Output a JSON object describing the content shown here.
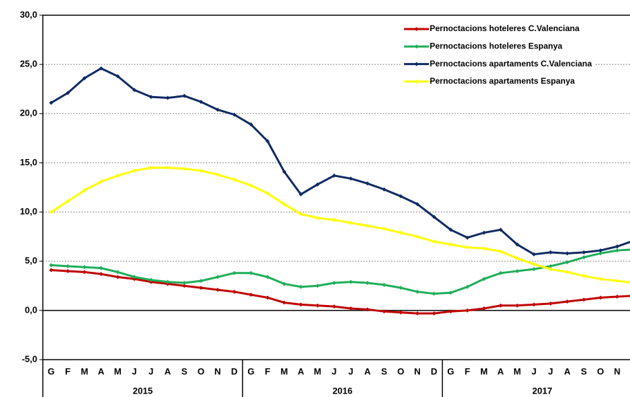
{
  "chart_data": {
    "type": "line",
    "categories": [
      "G",
      "F",
      "M",
      "A",
      "M",
      "J",
      "J",
      "A",
      "S",
      "O",
      "N",
      "D",
      "G",
      "F",
      "M",
      "A",
      "M",
      "J",
      "J",
      "A",
      "S",
      "O",
      "N",
      "D",
      "G",
      "F",
      "M",
      "A",
      "M",
      "J",
      "J",
      "A",
      "S",
      "O",
      "N",
      "D"
    ],
    "year_groups": [
      "2015",
      "2016",
      "2017"
    ],
    "series": [
      {
        "name": "Pernoctacions hoteleres C.Valenciana",
        "color": "#c00000",
        "values": [
          4.1,
          4.0,
          3.9,
          3.7,
          3.4,
          3.2,
          2.9,
          2.7,
          2.5,
          2.3,
          2.1,
          1.9,
          1.6,
          1.3,
          0.8,
          0.6,
          0.5,
          0.4,
          0.2,
          0.1,
          -0.1,
          -0.2,
          -0.3,
          -0.3,
          -0.1,
          0.0,
          0.2,
          0.5,
          0.5,
          0.6,
          0.7,
          0.9,
          1.1,
          1.3,
          1.4,
          1.5
        ]
      },
      {
        "name": "Pernoctacions hoteleres Espanya",
        "color": "#1fae5a",
        "values": [
          4.6,
          4.5,
          4.4,
          4.3,
          3.9,
          3.4,
          3.1,
          2.9,
          2.8,
          3.0,
          3.4,
          3.8,
          3.8,
          3.4,
          2.7,
          2.4,
          2.5,
          2.8,
          2.9,
          2.8,
          2.6,
          2.3,
          1.9,
          1.7,
          1.8,
          2.4,
          3.2,
          3.8,
          4.0,
          4.2,
          4.5,
          4.9,
          5.4,
          5.8,
          6.1,
          6.2
        ]
      },
      {
        "name": "Pernoctacions apartaments C.Valenciana",
        "color": "#102a63",
        "values": [
          21.1,
          22.1,
          23.6,
          24.6,
          23.8,
          22.4,
          21.7,
          21.6,
          21.8,
          21.2,
          20.4,
          19.9,
          18.9,
          17.2,
          14.1,
          11.8,
          12.8,
          13.7,
          13.4,
          12.9,
          12.3,
          11.6,
          10.8,
          9.5,
          8.2,
          7.4,
          7.9,
          8.2,
          6.7,
          5.7,
          5.9,
          5.8,
          5.9,
          6.1,
          6.5,
          7.1
        ]
      },
      {
        "name": "Pernoctacions apartaments Espanya",
        "color": "#ffff00",
        "values": [
          10.0,
          11.1,
          12.2,
          13.1,
          13.7,
          14.2,
          14.5,
          14.5,
          14.4,
          14.2,
          13.8,
          13.3,
          12.7,
          11.9,
          10.8,
          9.8,
          9.4,
          9.2,
          8.9,
          8.6,
          8.3,
          7.9,
          7.5,
          7.0,
          6.7,
          6.4,
          6.3,
          6.0,
          5.3,
          4.7,
          4.2,
          3.9,
          3.5,
          3.2,
          3.0,
          2.8
        ]
      }
    ],
    "ylim": [
      -5,
      30
    ],
    "yticks": [
      {
        "value": -5,
        "label": "-5,0"
      },
      {
        "value": 0,
        "label": "0,0"
      },
      {
        "value": 5,
        "label": "5,0"
      },
      {
        "value": 10,
        "label": "10,0"
      },
      {
        "value": 15,
        "label": "15,0"
      },
      {
        "value": 20,
        "label": "20,0"
      },
      {
        "value": 25,
        "label": "25,0"
      },
      {
        "value": 30,
        "label": "30,0"
      }
    ],
    "grid": true,
    "legend": "top-right"
  }
}
